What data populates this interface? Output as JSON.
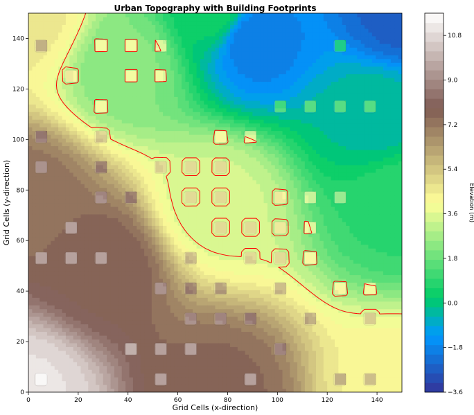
{
  "chart_data": {
    "type": "heatmap",
    "title": "Urban Topography with Building Footprints",
    "xlabel": "Grid Cells (x-direction)",
    "ylabel": "Grid Cells (y-direction)",
    "xlim": [
      0,
      150
    ],
    "ylim": [
      0,
      150
    ],
    "xticks": [
      0,
      20,
      40,
      60,
      80,
      100,
      120,
      140
    ],
    "yticks": [
      0,
      20,
      40,
      60,
      80,
      100,
      120,
      140
    ],
    "colorbar": {
      "label": "Elevation (m)",
      "colormap": "terrain",
      "range": [
        -3.6,
        11.7
      ],
      "ticks": [
        -3.6,
        -1.8,
        0.0,
        1.8,
        3.6,
        5.4,
        7.2,
        9.0,
        10.8
      ],
      "tick_labels": [
        "−3.6",
        "−1.8",
        "0.0",
        "1.8",
        "3.6",
        "5.4",
        "7.2",
        "9.0",
        "10.8"
      ]
    },
    "contour": {
      "level": 3.6,
      "color": "#ff0000"
    },
    "elevation_model": {
      "base": [
        [
          0,
          0,
          11.0
        ],
        [
          150,
          0,
          4.3
        ],
        [
          0,
          150,
          4.6
        ],
        [
          150,
          150,
          -2.6
        ],
        [
          75,
          75,
          3.4
        ],
        [
          75,
          0,
          7.6
        ],
        [
          0,
          75,
          7.4
        ],
        [
          150,
          75,
          0.9
        ],
        [
          75,
          150,
          0.4
        ],
        [
          90,
          140,
          -2.0
        ],
        [
          40,
          130,
          2.2
        ],
        [
          140,
          110,
          -0.3
        ],
        [
          30,
          50,
          7.8
        ]
      ],
      "building_height": 1.6
    },
    "buildings": [
      [
        5,
        137
      ],
      [
        29,
        137
      ],
      [
        41,
        137
      ],
      [
        53,
        137
      ],
      [
        125,
        137
      ],
      [
        17,
        125
      ],
      [
        41,
        125
      ],
      [
        53,
        125
      ],
      [
        29,
        113
      ],
      [
        101,
        113
      ],
      [
        113,
        113
      ],
      [
        125,
        113
      ],
      [
        137,
        113
      ],
      [
        5,
        101
      ],
      [
        29,
        101
      ],
      [
        77,
        101
      ],
      [
        89,
        101
      ],
      [
        5,
        89
      ],
      [
        29,
        89
      ],
      [
        53,
        89
      ],
      [
        65,
        89
      ],
      [
        77,
        89
      ],
      [
        29,
        77
      ],
      [
        41,
        77
      ],
      [
        65,
        77
      ],
      [
        77,
        77
      ],
      [
        101,
        77
      ],
      [
        113,
        77
      ],
      [
        125,
        77
      ],
      [
        17,
        65
      ],
      [
        77,
        65
      ],
      [
        89,
        65
      ],
      [
        101,
        65
      ],
      [
        113,
        65
      ],
      [
        5,
        53
      ],
      [
        17,
        53
      ],
      [
        29,
        53
      ],
      [
        65,
        53
      ],
      [
        89,
        53
      ],
      [
        101,
        53
      ],
      [
        113,
        53
      ],
      [
        53,
        41
      ],
      [
        65,
        41
      ],
      [
        77,
        41
      ],
      [
        101,
        41
      ],
      [
        125,
        41
      ],
      [
        137,
        41
      ],
      [
        65,
        29
      ],
      [
        77,
        29
      ],
      [
        89,
        29
      ],
      [
        113,
        29
      ],
      [
        137,
        29
      ],
      [
        41,
        17
      ],
      [
        53,
        17
      ],
      [
        65,
        17
      ],
      [
        101,
        17
      ],
      [
        5,
        5
      ],
      [
        53,
        5
      ],
      [
        89,
        5
      ],
      [
        125,
        5
      ],
      [
        137,
        5
      ]
    ],
    "building_size": 5
  }
}
